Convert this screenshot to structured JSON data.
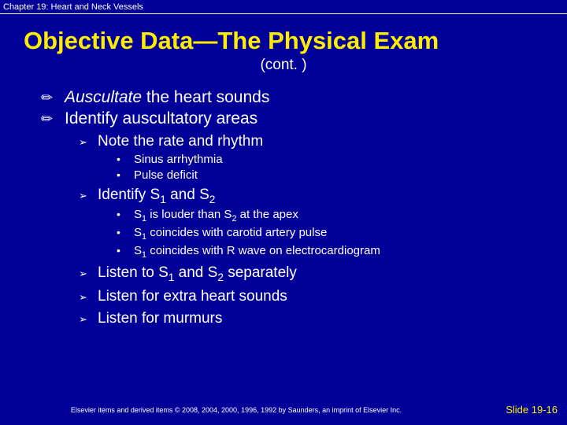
{
  "header": {
    "chapter": "Chapter 19: Heart and Neck Vessels"
  },
  "title": "Objective Data—The Physical Exam",
  "subtitle": "(cont. )",
  "bullets": {
    "b1_italic": "Auscultate",
    "b1_rest": " the heart sounds",
    "b2": "Identify auscultatory areas",
    "s1": "Note the rate and rhythm",
    "s1a": "Sinus arrhythmia",
    "s1b": "Pulse deficit",
    "s2": "Identify S",
    "s2_and": " and S",
    "s2a_p1": "S",
    "s2a_p2": " is louder than S",
    "s2a_p3": " at the apex",
    "s2b_p1": "S",
    "s2b_p2": " coincides with carotid artery pulse",
    "s2c_p1": "S",
    "s2c_p2": " coincides with R wave on electrocardiogram",
    "s3_p1": "Listen to S",
    "s3_p2": " and S",
    "s3_p3": " separately",
    "s4": "Listen for extra heart sounds",
    "s5": "Listen for murmurs"
  },
  "footer": {
    "copyright": "Elsevier items and derived items © 2008, 2004, 2000, 1996, 1992 by Saunders, an imprint of Elsevier Inc.",
    "slide": "Slide 19-16"
  },
  "glyphs": {
    "l1": "✏",
    "l2": "➢",
    "l3": "•",
    "n1": "1",
    "n2": "2"
  }
}
